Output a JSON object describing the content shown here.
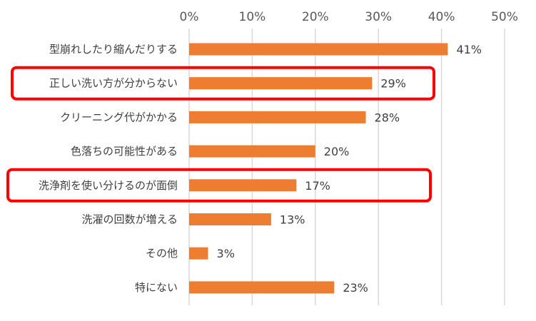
{
  "chart_data": {
    "type": "bar",
    "orientation": "horizontal",
    "categories": [
      "型崩れしたり縮んだりする",
      "正しい洗い方が分からない",
      "クリーニング代がかかる",
      "色落ちの可能性がある",
      "洗浄剤を使い分けるのが面倒",
      "洗濯の回数が増える",
      "その他",
      "特にない"
    ],
    "values": [
      41,
      29,
      28,
      20,
      17,
      13,
      3,
      23
    ],
    "value_labels": [
      "41%",
      "29%",
      "28%",
      "20%",
      "17%",
      "13%",
      "3%",
      "23%"
    ],
    "xlim": [
      0,
      50
    ],
    "x_ticks": [
      0,
      10,
      20,
      30,
      40,
      50
    ],
    "x_tick_labels": [
      "0%",
      "10%",
      "20%",
      "30%",
      "40%",
      "50%"
    ],
    "x_axis_position": "top",
    "grid": true,
    "legend": "none",
    "highlighted_categories": [
      "正しい洗い方が分からない",
      "洗浄剤を使い分けるのが面倒"
    ],
    "title": "",
    "xlabel": "",
    "ylabel": ""
  },
  "colors": {
    "bar": "#ED7D31",
    "grid": "#D9D9D9",
    "highlight_box": "#FF0000",
    "text": "#404040"
  }
}
